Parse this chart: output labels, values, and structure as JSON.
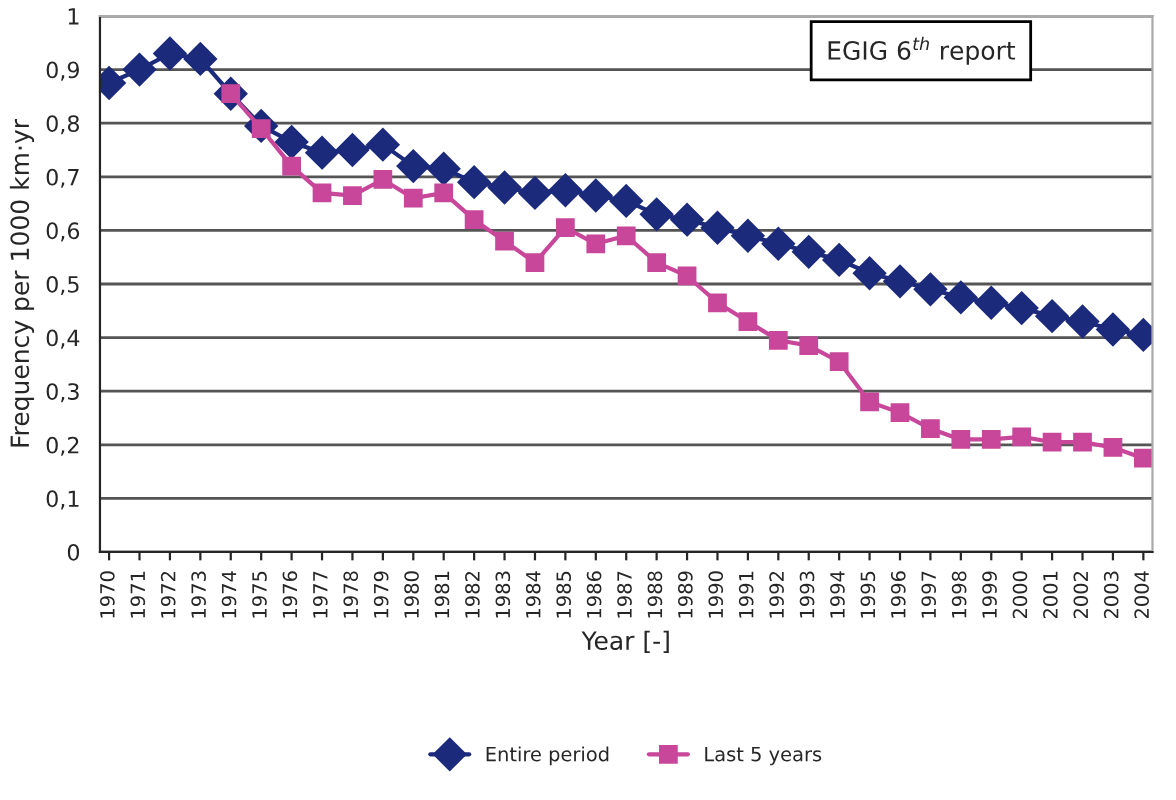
{
  "chart_data": {
    "type": "line",
    "xlabel": "Year [-]",
    "ylabel": "Frequency per 1000 km·yr",
    "annotations": [
      "EGIG 6$^{th}$ report"
    ],
    "categories": [
      "1970",
      "1971",
      "1972",
      "1973",
      "1974",
      "1975",
      "1976",
      "1977",
      "1978",
      "1979",
      "1980",
      "1981",
      "1982",
      "1983",
      "1984",
      "1985",
      "1986",
      "1987",
      "1988",
      "1989",
      "1990",
      "1991",
      "1992",
      "1993",
      "1994",
      "1995",
      "1996",
      "1997",
      "1998",
      "1999",
      "2000",
      "2001",
      "2002",
      "2003",
      "2004"
    ],
    "series": [
      {
        "name": "Entire period",
        "color": "#1c2a7c",
        "marker": "diamond",
        "values": [
          0.875,
          0.9,
          0.93,
          0.92,
          0.855,
          0.795,
          0.765,
          0.745,
          0.75,
          0.76,
          0.72,
          0.715,
          0.69,
          0.68,
          0.67,
          0.675,
          0.665,
          0.655,
          0.63,
          0.62,
          0.605,
          0.59,
          0.575,
          0.56,
          0.545,
          0.52,
          0.505,
          0.49,
          0.475,
          0.465,
          0.455,
          0.44,
          0.43,
          0.415,
          0.405
        ]
      },
      {
        "name": "Last 5 years",
        "color": "#c8479a",
        "marker": "square",
        "values": [
          null,
          null,
          null,
          null,
          0.855,
          0.79,
          0.72,
          0.67,
          0.665,
          0.695,
          0.66,
          0.67,
          0.62,
          0.58,
          0.54,
          0.605,
          0.575,
          0.59,
          0.54,
          0.515,
          0.465,
          0.43,
          0.395,
          0.385,
          0.355,
          0.28,
          0.26,
          0.23,
          0.21,
          0.21,
          0.215,
          0.205,
          0.205,
          0.195,
          0.175
        ]
      }
    ],
    "ylim": [
      0,
      1
    ],
    "yticks": [
      {
        "value": 0,
        "label": "0"
      },
      {
        "value": 0.1,
        "label": "0,1"
      },
      {
        "value": 0.2,
        "label": "0,2"
      },
      {
        "value": 0.3,
        "label": "0,3"
      },
      {
        "value": 0.4,
        "label": "0,4"
      },
      {
        "value": 0.5,
        "label": "0,5"
      },
      {
        "value": 0.6,
        "label": "0,6"
      },
      {
        "value": 0.7,
        "label": "0,7"
      },
      {
        "value": 0.8,
        "label": "0,8"
      },
      {
        "value": 0.9,
        "label": "0,9"
      },
      {
        "value": 1,
        "label": "1"
      }
    ],
    "grid": "y",
    "legend": "bottom"
  }
}
